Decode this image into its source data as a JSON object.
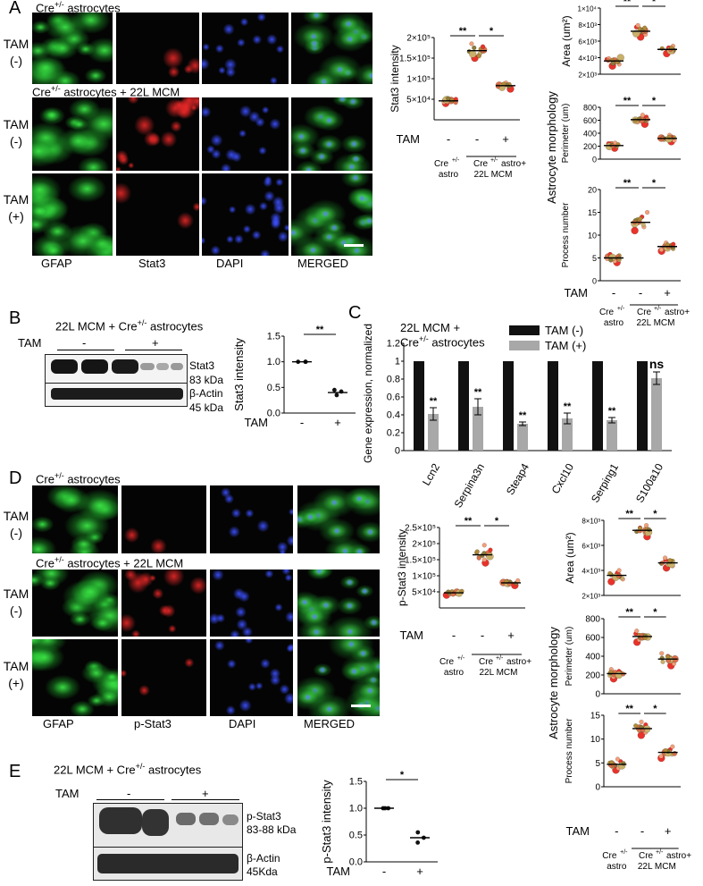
{
  "panels": {
    "A": {
      "label": "A",
      "row_titles": [
        "Cre+/- astrocytes",
        "Cre+/- astrocytes + 22L MCM"
      ],
      "row_titles_parts": [
        {
          "pre": "Cre",
          "sup": "+/-",
          "post": " astrocytes"
        },
        {
          "pre": "Cre",
          "sup": "+/-",
          "post": " astrocytes + 22L MCM"
        }
      ],
      "row_labels": [
        [
          "TAM",
          "(-)"
        ],
        [
          "TAM",
          "(-)"
        ],
        [
          "TAM",
          "(+)"
        ]
      ],
      "channels": [
        "GFAP",
        "Stat3",
        "DAPI",
        "MERGED"
      ]
    },
    "B": {
      "label": "B",
      "title_pre": "22L MCM + Cre",
      "title_sup": "+/-",
      "title_post": " astrocytes",
      "tam": "TAM",
      "minus": "-",
      "plus": "+",
      "band_labels": [
        "Stat3",
        "83 kDa",
        "β-Actin",
        "45  kDa"
      ]
    },
    "C": {
      "label": "C",
      "title_line1": "22L MCM +",
      "title_line2_pre": "Cre",
      "title_line2_sup": "+/-",
      "title_line2_post": " astrocytes"
    },
    "D": {
      "label": "D",
      "row_titles_parts": [
        {
          "pre": "Cre",
          "sup": "+/-",
          "post": " astrocytes"
        },
        {
          "pre": "Cre",
          "sup": "+/-",
          "post": " astrocytes + 22L MCM"
        }
      ],
      "row_labels": [
        [
          "TAM",
          "(-)"
        ],
        [
          "TAM",
          "(-)"
        ],
        [
          "TAM",
          "(+)"
        ]
      ],
      "channels": [
        "GFAP",
        "p-Stat3",
        "DAPI",
        "MERGED"
      ]
    },
    "E": {
      "label": "E",
      "title_pre": "22L MCM + Cre",
      "title_sup": "+/-",
      "title_post": " astrocytes",
      "tam": "TAM",
      "minus": "-",
      "plus": "+",
      "band_labels": [
        "p-Stat3",
        "83-88 kDa",
        "β-Actin",
        "45Kda"
      ]
    }
  },
  "morphology_title": "Astrocyte morphology",
  "group_labels": {
    "tam": "TAM",
    "astro_pre": "Cre",
    "astro_sup": "+/-",
    "astro_post": "astro",
    "mcm_pre": "Cre",
    "mcm_sup": "+/-",
    "mcm_post": " astro+",
    "mcm_line2": "22L MCM",
    "ticks": [
      "-",
      "-",
      "+"
    ]
  },
  "colors": {
    "gfap": "#2fd13a",
    "stat3": "#e02020",
    "dapi": "#2a3adf",
    "bar_tam_minus": "#111111",
    "bar_tam_plus": "#a8a8a8",
    "dot_palette": [
      "#e8332a",
      "#f2a07a",
      "#c9b06a",
      "#8a7a3a",
      "#d9704a",
      "#b08a3a"
    ]
  },
  "chart_data": [
    {
      "id": "A-stat3",
      "type": "scatter",
      "ylabel": "Stat3 intensity",
      "ylim": [
        0,
        200000
      ],
      "yticks": [
        "5×10⁴",
        "1×10⁵",
        "1.5×10⁵",
        "2×10⁵"
      ],
      "ytick_values": [
        50000,
        100000,
        150000,
        200000
      ],
      "groups": [
        {
          "name": "Cre+/- astro, TAM -",
          "mean": 46000,
          "points": [
            40000,
            43000,
            45000,
            46000,
            47000,
            48000,
            50000,
            44000,
            49000,
            52000,
            42000,
            47000
          ]
        },
        {
          "name": "Cre+/- astro + 22L MCM, TAM -",
          "mean": 168000,
          "points": [
            150000,
            158000,
            162000,
            166000,
            170000,
            172000,
            178000,
            185000,
            160000,
            175000,
            168000,
            155000
          ]
        },
        {
          "name": "Cre+/- astro + 22L MCM, TAM +",
          "mean": 83000,
          "points": [
            75000,
            78000,
            80000,
            82000,
            84000,
            86000,
            88000,
            90000,
            79000,
            85000,
            81000,
            87000
          ]
        }
      ],
      "significance": [
        {
          "pair": [
            0,
            1
          ],
          "label": "**"
        },
        {
          "pair": [
            1,
            2
          ],
          "label": "*"
        }
      ]
    },
    {
      "id": "A-area",
      "type": "scatter",
      "ylabel": "Area (um²)",
      "ylim": [
        2000,
        10000
      ],
      "yticks": [
        "2×10³",
        "4×10³",
        "6×10³",
        "8×10³",
        "1×10⁴"
      ],
      "ytick_values": [
        2000,
        4000,
        6000,
        8000,
        10000
      ],
      "groups": [
        {
          "name": "Cre+/- astro, TAM -",
          "mean": 3600,
          "points": [
            3000,
            3200,
            3400,
            3500,
            3600,
            3700,
            3800,
            3900,
            4000,
            3300,
            3650,
            3550
          ]
        },
        {
          "name": "Cre+/- astro + 22L MCM, TAM -",
          "mean": 7200,
          "points": [
            6500,
            6800,
            7000,
            7100,
            7300,
            7500,
            7700,
            7900,
            6900,
            7400,
            7200,
            7600
          ]
        },
        {
          "name": "Cre+/- astro + 22L MCM, TAM +",
          "mean": 5000,
          "points": [
            4500,
            4700,
            4800,
            4900,
            5000,
            5100,
            5200,
            5400,
            4850,
            5050,
            4950,
            5150
          ]
        }
      ],
      "significance": [
        {
          "pair": [
            0,
            1
          ],
          "label": "**"
        },
        {
          "pair": [
            1,
            2
          ],
          "label": "*"
        }
      ]
    },
    {
      "id": "A-perimeter",
      "type": "scatter",
      "ylabel": "Perimeter (um)",
      "ylim": [
        0,
        800
      ],
      "yticks": [
        "0",
        "200",
        "400",
        "600",
        "800"
      ],
      "ytick_values": [
        0,
        200,
        400,
        600,
        800
      ],
      "groups": [
        {
          "name": "Cre+/- astro, TAM -",
          "mean": 210,
          "points": [
            170,
            190,
            200,
            210,
            220,
            230,
            240,
            250,
            195,
            215,
            205,
            225
          ]
        },
        {
          "name": "Cre+/- astro + 22L MCM, TAM -",
          "mean": 610,
          "points": [
            540,
            570,
            590,
            600,
            610,
            630,
            650,
            680,
            600,
            620,
            615,
            595
          ]
        },
        {
          "name": "Cre+/- astro + 22L MCM, TAM +",
          "mean": 320,
          "points": [
            270,
            290,
            300,
            315,
            325,
            335,
            350,
            370,
            310,
            330,
            320,
            340
          ]
        }
      ],
      "significance": [
        {
          "pair": [
            0,
            1
          ],
          "label": "**"
        },
        {
          "pair": [
            1,
            2
          ],
          "label": "*"
        }
      ]
    },
    {
      "id": "A-process",
      "type": "scatter",
      "ylabel": "Process number",
      "ylim": [
        0,
        20
      ],
      "yticks": [
        "0",
        "5",
        "10",
        "15",
        "20"
      ],
      "ytick_values": [
        0,
        5,
        10,
        15,
        20
      ],
      "groups": [
        {
          "name": "Cre+/- astro, TAM -",
          "mean": 5,
          "points": [
            4,
            4.3,
            4.6,
            5,
            5.2,
            5.5,
            5.8,
            4.8,
            5.1,
            4.5,
            5.3,
            4.9
          ]
        },
        {
          "name": "Cre+/- astro + 22L MCM, TAM -",
          "mean": 12.8,
          "points": [
            11,
            11.8,
            12.3,
            12.7,
            13,
            13.4,
            14,
            15,
            12.5,
            13.2,
            12.8,
            13.6
          ]
        },
        {
          "name": "Cre+/- astro + 22L MCM, TAM +",
          "mean": 7.5,
          "points": [
            6.5,
            6.8,
            7,
            7.3,
            7.5,
            7.8,
            8,
            8.3,
            7.2,
            7.6,
            7.4,
            7.9
          ]
        }
      ],
      "significance": [
        {
          "pair": [
            0,
            1
          ],
          "label": "**"
        },
        {
          "pair": [
            1,
            2
          ],
          "label": "*"
        }
      ]
    },
    {
      "id": "B-stat3",
      "type": "scatter",
      "ylabel": "Stat3 intensity",
      "ylim": [
        0,
        1.5
      ],
      "yticks": [
        "0.0",
        "0.5",
        "1.0",
        "1.5"
      ],
      "ytick_values": [
        0,
        0.5,
        1.0,
        1.5
      ],
      "xticks": [
        "-",
        "+"
      ],
      "xlabel": "TAM",
      "groups": [
        {
          "name": "TAM -",
          "mean": 1.0,
          "points": [
            1.0,
            1.0,
            1.0
          ]
        },
        {
          "name": "TAM +",
          "mean": 0.4,
          "points": [
            0.35,
            0.42,
            0.45
          ]
        }
      ],
      "significance": [
        {
          "pair": [
            0,
            1
          ],
          "label": "**"
        }
      ]
    },
    {
      "id": "C-genes",
      "type": "bar",
      "ylabel": "Gene expression, normalized",
      "ylim": [
        0,
        1.2
      ],
      "yticks": [
        "0",
        "0.2",
        "0.4",
        "0.6",
        "0.8",
        "1",
        "1.2"
      ],
      "ytick_values": [
        0,
        0.2,
        0.4,
        0.6,
        0.8,
        1.0,
        1.2
      ],
      "categories": [
        "Lcn2",
        "Serpina3n",
        "Steap4",
        "Cxcl10",
        "Serping1",
        "S100a10"
      ],
      "series": [
        {
          "name": "TAM (-)",
          "values": [
            1,
            1,
            1,
            1,
            1,
            1
          ],
          "errors": [
            0,
            0,
            0,
            0,
            0,
            0
          ]
        },
        {
          "name": "TAM (+)",
          "values": [
            0.41,
            0.49,
            0.3,
            0.36,
            0.34,
            0.81
          ],
          "errors": [
            0.07,
            0.09,
            0.02,
            0.06,
            0.03,
            0.07
          ]
        }
      ],
      "significance": [
        "**",
        "**",
        "**",
        "**",
        "**",
        "ns"
      ],
      "legend_position": "top-right"
    },
    {
      "id": "D-pstat3",
      "type": "scatter",
      "ylabel": "p-Stat3 intensity",
      "ylim": [
        0,
        250000
      ],
      "yticks": [
        "5×10⁴",
        "1×10⁵",
        "1.5×10⁵",
        "2×10⁵",
        "2.5×10⁵"
      ],
      "ytick_values": [
        50000,
        100000,
        150000,
        200000,
        250000
      ],
      "groups": [
        {
          "name": "Cre+/- astro, TAM -",
          "mean": 47000,
          "points": [
            40000,
            43000,
            45000,
            47000,
            49000,
            51000,
            44000,
            48000,
            46000,
            50000,
            42000,
            52000
          ]
        },
        {
          "name": "Cre+/- astro + 22L MCM, TAM -",
          "mean": 165000,
          "points": [
            140000,
            150000,
            158000,
            163000,
            168000,
            172000,
            180000,
            195000,
            160000,
            170000,
            155000,
            175000
          ]
        },
        {
          "name": "Cre+/- astro + 22L MCM, TAM +",
          "mean": 78000,
          "points": [
            70000,
            73000,
            75000,
            77000,
            79000,
            81000,
            83000,
            85000,
            76000,
            80000,
            74000,
            82000
          ]
        }
      ],
      "significance": [
        {
          "pair": [
            0,
            1
          ],
          "label": "**"
        },
        {
          "pair": [
            1,
            2
          ],
          "label": "*"
        }
      ]
    },
    {
      "id": "D-area",
      "type": "scatter",
      "ylabel": "Area (um²)",
      "ylim": [
        2000,
        8000
      ],
      "yticks": [
        "2×10³",
        "4×10³",
        "6×10³",
        "8×10³"
      ],
      "ytick_values": [
        2000,
        4000,
        6000,
        8000
      ],
      "groups": [
        {
          "name": "Cre+/- astro, TAM -",
          "mean": 3600,
          "points": [
            3100,
            3300,
            3400,
            3500,
            3600,
            3700,
            3800,
            4000,
            3450,
            3650,
            3550,
            3750
          ]
        },
        {
          "name": "Cre+/- astro + 22L MCM, TAM -",
          "mean": 7200,
          "points": [
            6700,
            6900,
            7000,
            7100,
            7200,
            7300,
            7400,
            7600,
            7050,
            7250,
            7150,
            7350
          ]
        },
        {
          "name": "Cre+/- astro + 22L MCM, TAM +",
          "mean": 4600,
          "points": [
            4200,
            4350,
            4450,
            4550,
            4650,
            4750,
            4850,
            5000,
            4500,
            4700,
            4600,
            4800
          ]
        }
      ],
      "significance": [
        {
          "pair": [
            0,
            1
          ],
          "label": "**"
        },
        {
          "pair": [
            1,
            2
          ],
          "label": "*"
        }
      ]
    },
    {
      "id": "D-perimeter",
      "type": "scatter",
      "ylabel": "Perimeter (um)",
      "ylim": [
        0,
        800
      ],
      "yticks": [
        "0",
        "200",
        "400",
        "600",
        "800"
      ],
      "ytick_values": [
        0,
        200,
        400,
        600,
        800
      ],
      "groups": [
        {
          "name": "Cre+/- astro, TAM -",
          "mean": 215,
          "points": [
            160,
            180,
            195,
            205,
            215,
            225,
            240,
            260,
            200,
            220,
            210,
            230
          ]
        },
        {
          "name": "Cre+/- astro + 22L MCM, TAM -",
          "mean": 610,
          "points": [
            550,
            575,
            590,
            600,
            610,
            625,
            640,
            670,
            605,
            620,
            615,
            595
          ]
        },
        {
          "name": "Cre+/- astro + 22L MCM, TAM +",
          "mean": 370,
          "points": [
            300,
            320,
            340,
            355,
            370,
            385,
            400,
            430,
            360,
            380,
            350,
            395
          ]
        }
      ],
      "significance": [
        {
          "pair": [
            0,
            1
          ],
          "label": "**"
        },
        {
          "pair": [
            1,
            2
          ],
          "label": "*"
        }
      ]
    },
    {
      "id": "D-process",
      "type": "scatter",
      "ylabel": "Process number",
      "ylim": [
        0,
        15
      ],
      "yticks": [
        "0",
        "5",
        "10",
        "15"
      ],
      "ytick_values": [
        0,
        5,
        10,
        15
      ],
      "groups": [
        {
          "name": "Cre+/- astro, TAM -",
          "mean": 4.7,
          "points": [
            3.5,
            3.9,
            4.2,
            4.5,
            4.7,
            5,
            5.3,
            5.8,
            4.4,
            4.9,
            4.6,
            5.1
          ]
        },
        {
          "name": "Cre+/- astro + 22L MCM, TAM -",
          "mean": 12.2,
          "points": [
            10.8,
            11.4,
            11.8,
            12,
            12.3,
            12.6,
            13,
            13.6,
            12.1,
            12.5,
            11.9,
            12.8
          ]
        },
        {
          "name": "Cre+/- astro + 22L MCM, TAM +",
          "mean": 7.2,
          "points": [
            6,
            6.4,
            6.8,
            7,
            7.2,
            7.5,
            7.8,
            8.4,
            7.1,
            7.4,
            6.9,
            7.6
          ]
        }
      ],
      "significance": [
        {
          "pair": [
            0,
            1
          ],
          "label": "**"
        },
        {
          "pair": [
            1,
            2
          ],
          "label": "*"
        }
      ]
    },
    {
      "id": "E-pstat3",
      "type": "scatter",
      "ylabel": "p-Stat3 intensity",
      "ylim": [
        0,
        1.5
      ],
      "yticks": [
        "0.0",
        "0.5",
        "1.0",
        "1.5"
      ],
      "ytick_values": [
        0,
        0.5,
        1.0,
        1.5
      ],
      "xticks": [
        "-",
        "+"
      ],
      "xlabel": "TAM",
      "groups": [
        {
          "name": "TAM -",
          "mean": 1.0,
          "points": [
            1.0,
            1.0,
            1.0
          ]
        },
        {
          "name": "TAM +",
          "mean": 0.45,
          "points": [
            0.36,
            0.45,
            0.55
          ]
        }
      ],
      "significance": [
        {
          "pair": [
            0,
            1
          ],
          "label": "*"
        }
      ]
    }
  ]
}
